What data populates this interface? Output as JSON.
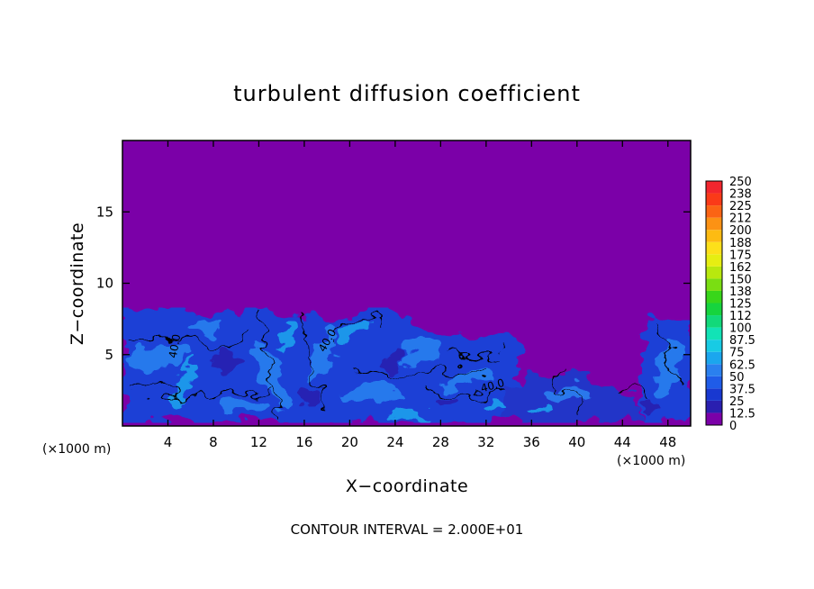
{
  "chart_data": {
    "type": "heatmap",
    "title": "turbulent diffusion coefficient",
    "xlabel": "X−coordinate",
    "ylabel": "Z−coordinate",
    "x_unit": "(×1000 m)",
    "z_unit": "(×1000 m)",
    "xlim": [
      0,
      50
    ],
    "ylim": [
      0,
      20
    ],
    "x_ticks": [
      4,
      8,
      12,
      16,
      20,
      24,
      28,
      32,
      36,
      40,
      44,
      48
    ],
    "y_ticks": [
      5,
      10,
      15
    ],
    "colorbar": {
      "levels": [
        "0",
        "12.5",
        "25",
        "37.5",
        "50",
        "62.5",
        "75",
        "87.5",
        "100",
        "112",
        "125",
        "138",
        "150",
        "162",
        "175",
        "188",
        "200",
        "212",
        "225",
        "238",
        "250"
      ],
      "colors": [
        "#7b00a8",
        "#2a1fb0",
        "#1838d0",
        "#1f5ce8",
        "#2a80ef",
        "#1ba6ee",
        "#18cbe4",
        "#12e3b6",
        "#12d97a",
        "#16d43e",
        "#38d61a",
        "#7ade12",
        "#b8e80e",
        "#e6ee12",
        "#fde01a",
        "#fdbb12",
        "#fc9214",
        "#fb6414",
        "#fa3a18",
        "#f2262e",
        "#f47a80"
      ]
    },
    "contour_labels": [
      "40.0",
      "40.0",
      "40.0"
    ],
    "background_value": 0,
    "turbulent_layer_top_z": 8,
    "footer": "CONTOUR INTERVAL = 2.000E+01"
  }
}
